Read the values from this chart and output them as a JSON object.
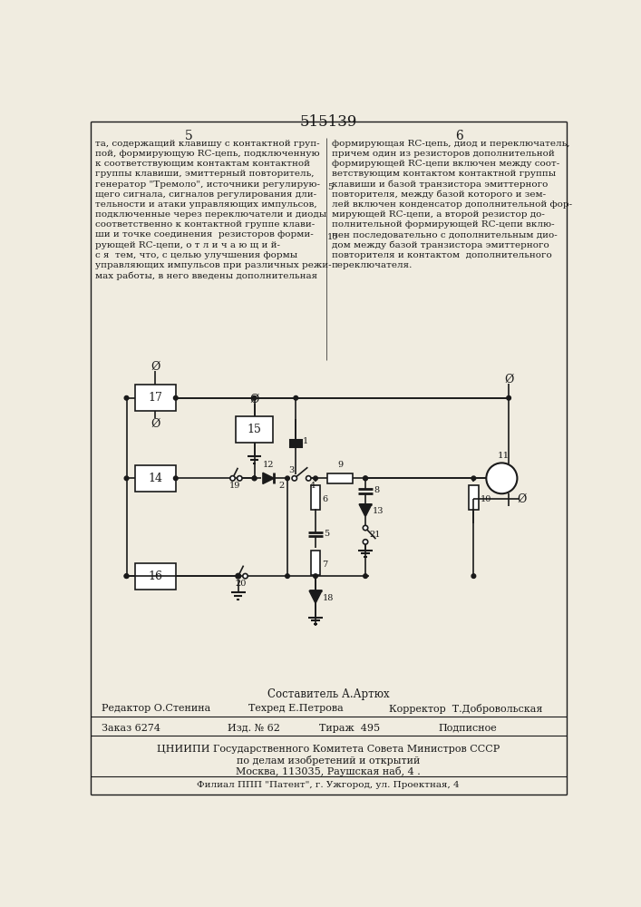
{
  "patent_number": "515139",
  "page_left": "5",
  "page_right": "6",
  "text_left_lines": [
    "та, содержащий клавишу с контактной груп-",
    "пой, формирующую RC-цепь, подключенную",
    "к соответствующим контактам контактной",
    "группы клавиши, эмиттерный повторитель,",
    "генератор \"Тремоло\", источники регулирую-",
    "щего сигнала, сигналов регулирования дли-",
    "тельности и атаки управляющих импульсов,",
    "подключенные через переключатели и диоды",
    "соответственно к контактной группе клави-",
    "ши и точке соединения  резисторов форми-",
    "рующей RC-цепи, о т л и ч а ю щ и й-",
    "с я  тем, что, с целью улучшения формы",
    "управляющих импульсов при различных режи-",
    "мах работы, в него введены дополнительная"
  ],
  "text_right_lines": [
    "формирующая RC-цепь, диод и переключатель,",
    "причем один из резисторов дополнительной",
    "формирующей RC-цепи включен между соот-",
    "ветствующим контактом контактной группы",
    "клавиши и базой транзистора эмиттерного",
    "повторителя, между базой которого и зем-",
    "лей включен конденсатор дополнительной фор-",
    "мирующей RC-цепи, а второй резистор до-",
    "полнительной формирующей RC-цепи вклю-",
    "чен последовательно с дополнительным дио-",
    "дом между базой транзистора эмиттерного",
    "повторителя и контактом  дополнительного",
    "переключателя."
  ],
  "line_number_5": "5",
  "line_number_10": "10",
  "footer_composer": "Составитель А.Артюх",
  "footer_editor": "Редактор О.Стенина",
  "footer_tech": "Техред Е.Петрова",
  "footer_corrector": "Корректор  Т.Добровольская",
  "footer_order": "Заказ 6274",
  "footer_pub": "Изд. № 62",
  "footer_circulation": "Тираж  495",
  "footer_subscription": "Подписное",
  "footer_org1": "ЦНИИПИ Государственного Комитета Совета Министров СССР",
  "footer_org2": "по делам изобретений и открытий",
  "footer_org3": "Москва, 113035, Раушская наб, 4 .",
  "footer_branch": "Филиал ППП \"Патент\", г. Ужгород, ул. Проектная, 4",
  "bg_color": "#f0ece0",
  "line_color": "#1a1a1a",
  "text_color": "#1a1a1a"
}
